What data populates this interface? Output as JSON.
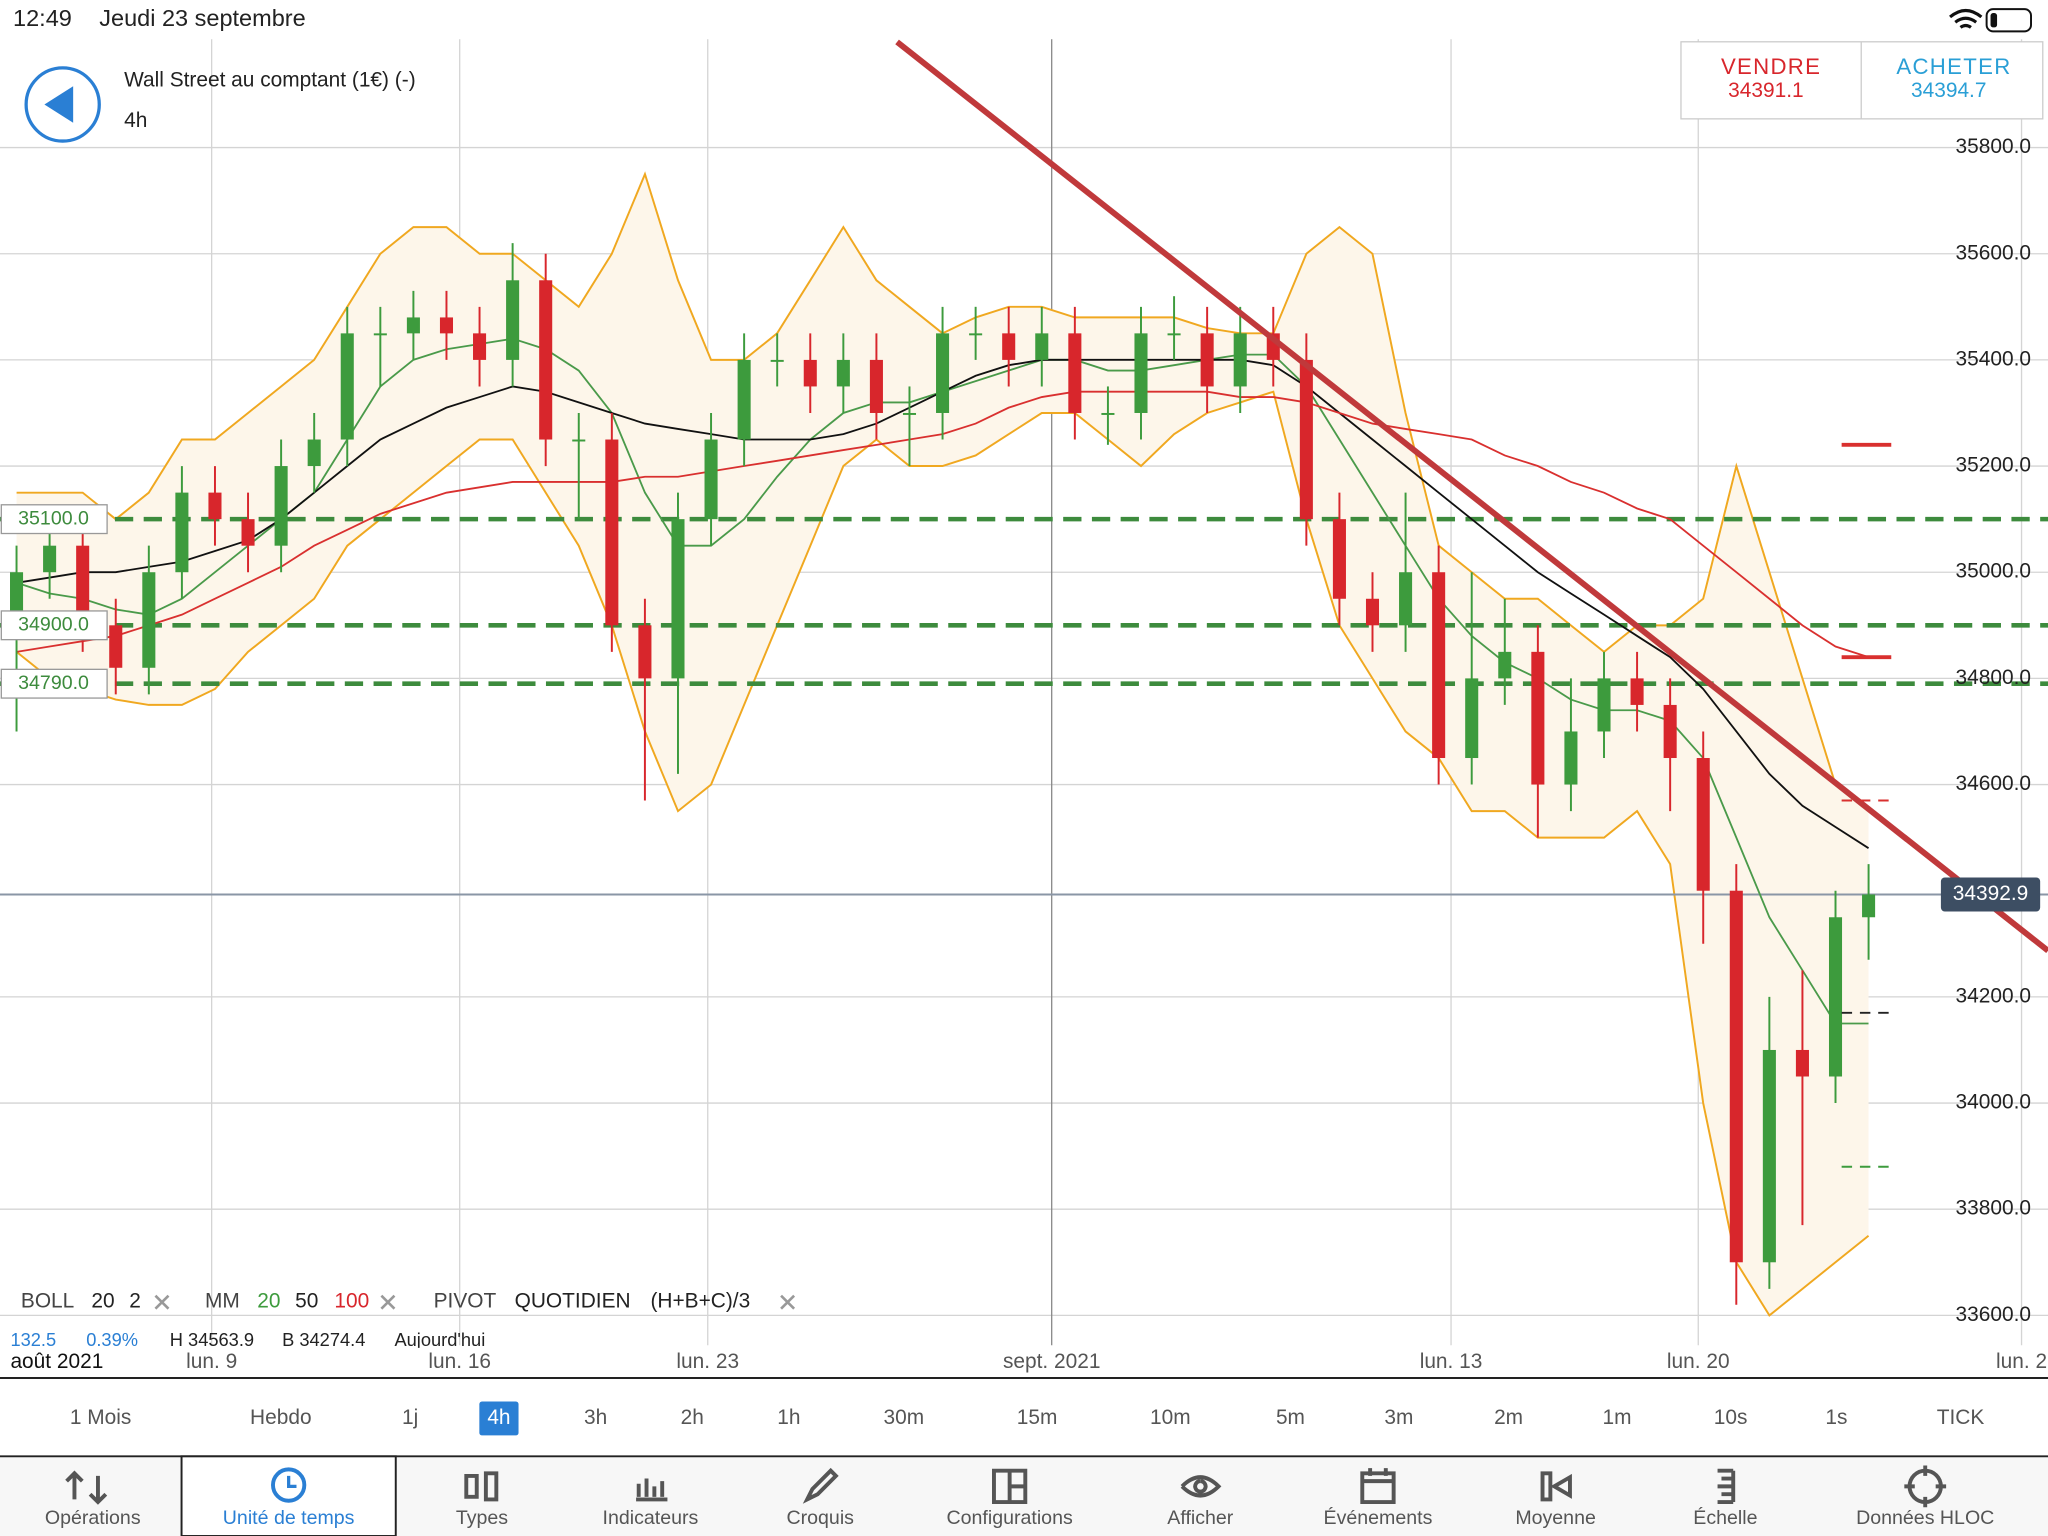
{
  "status_bar": {
    "time": "12:49",
    "date": "Jeudi 23 septembre"
  },
  "header": {
    "instrument": "Wall Street au comptant (1€) (-)",
    "timeframe": "4h"
  },
  "quote": {
    "sell_label": "VENDRE",
    "sell": 34391.1,
    "buy_label": "ACHETER",
    "buy": 34394.7
  },
  "chart_data": {
    "type": "candlestick",
    "x": [
      2,
      6,
      10,
      14,
      18,
      22,
      26,
      30,
      34,
      38,
      42,
      46,
      50,
      54,
      58,
      62,
      66,
      70,
      74,
      78,
      82,
      86,
      90,
      94,
      98,
      102,
      106,
      110,
      114,
      118,
      122,
      126,
      130,
      134,
      138,
      142,
      146,
      150,
      154,
      158,
      162,
      166,
      170,
      174,
      178,
      182,
      186,
      190,
      194,
      198,
      202,
      206,
      210,
      214,
      218,
      222,
      226
    ],
    "open": [
      34900,
      35000,
      35050,
      34900,
      34820,
      35000,
      35150,
      35100,
      35050,
      35200,
      35250,
      35450,
      35450,
      35480,
      35450,
      35400,
      35550,
      35250,
      35250,
      34900,
      34800,
      35100,
      35250,
      35400,
      35400,
      35350,
      35400,
      35300,
      35300,
      35450,
      35450,
      35400,
      35450,
      35300,
      35300,
      35450,
      35450,
      35350,
      35450,
      35400,
      35100,
      34950,
      34900,
      35000,
      34650,
      34800,
      34850,
      34600,
      34700,
      34800,
      34750,
      34650,
      34400,
      33700,
      34100,
      34050,
      34350
    ],
    "high": [
      35050,
      35100,
      35100,
      34950,
      35050,
      35200,
      35200,
      35150,
      35250,
      35300,
      35500,
      35500,
      35530,
      35530,
      35500,
      35620,
      35600,
      35300,
      35300,
      34950,
      35150,
      35300,
      35450,
      35450,
      35450,
      35450,
      35450,
      35350,
      35500,
      35500,
      35500,
      35500,
      35500,
      35350,
      35500,
      35520,
      35500,
      35500,
      35500,
      35450,
      35150,
      35000,
      35150,
      35050,
      35000,
      34950,
      34900,
      34800,
      34850,
      34850,
      34800,
      34700,
      34450,
      34200,
      34250,
      34400,
      34450
    ],
    "low": [
      34700,
      34950,
      34850,
      34770,
      34770,
      34950,
      35050,
      35000,
      35000,
      35150,
      35200,
      35350,
      35400,
      35400,
      35350,
      35350,
      35200,
      35100,
      34850,
      34570,
      34620,
      35050,
      35200,
      35350,
      35300,
      35300,
      35250,
      35200,
      35250,
      35400,
      35350,
      35350,
      35250,
      35240,
      35250,
      35400,
      35300,
      35300,
      35350,
      35050,
      34900,
      34850,
      34850,
      34600,
      34600,
      34750,
      34500,
      34550,
      34650,
      34700,
      34550,
      34300,
      33620,
      33650,
      33770,
      34000,
      34270
    ],
    "close": [
      35000,
      35050,
      34900,
      34820,
      35000,
      35150,
      35100,
      35050,
      35200,
      35250,
      35450,
      35450,
      35480,
      35450,
      35400,
      35550,
      35250,
      35250,
      34900,
      34800,
      35100,
      35250,
      35400,
      35400,
      35350,
      35400,
      35300,
      35300,
      35450,
      35450,
      35400,
      35450,
      35300,
      35300,
      35450,
      35450,
      35350,
      35450,
      35400,
      35100,
      34950,
      34900,
      35000,
      34650,
      34800,
      34850,
      34600,
      34700,
      34800,
      34750,
      34650,
      34400,
      33700,
      34100,
      34050,
      34350,
      34392.9
    ],
    "up_color": "#3d9b3d",
    "down_color": "#d8262c",
    "bollinger": {
      "color": "#f0a820",
      "fill": "#fdf6ea",
      "upper": [
        35150,
        35150,
        35150,
        35100,
        35150,
        35250,
        35250,
        35300,
        35350,
        35400,
        35500,
        35600,
        35650,
        35650,
        35600,
        35600,
        35550,
        35500,
        35600,
        35750,
        35550,
        35400,
        35400,
        35450,
        35550,
        35650,
        35550,
        35500,
        35450,
        35480,
        35500,
        35500,
        35480,
        35480,
        35480,
        35480,
        35460,
        35450,
        35450,
        35600,
        35650,
        35600,
        35300,
        35050,
        35000,
        34950,
        34950,
        34900,
        34850,
        34900,
        34900,
        34950,
        35200,
        35000,
        34800,
        34600,
        34550
      ],
      "lower": [
        34850,
        34800,
        34780,
        34760,
        34750,
        34750,
        34780,
        34850,
        34900,
        34950,
        35050,
        35100,
        35150,
        35200,
        35250,
        35250,
        35150,
        35050,
        34900,
        34700,
        34550,
        34600,
        34750,
        34900,
        35050,
        35200,
        35250,
        35200,
        35200,
        35220,
        35260,
        35300,
        35300,
        35250,
        35200,
        35260,
        35300,
        35320,
        35340,
        35100,
        34900,
        34800,
        34700,
        34650,
        34550,
        34550,
        34500,
        34500,
        34500,
        34550,
        34450,
        34000,
        33700,
        33600,
        33650,
        33700,
        33750
      ]
    },
    "overlays": [
      {
        "color": "#4a9a4a",
        "values": [
          34980,
          34960,
          34950,
          34930,
          34920,
          34950,
          35000,
          35050,
          35100,
          35150,
          35250,
          35350,
          35400,
          35420,
          35430,
          35440,
          35420,
          35380,
          35300,
          35150,
          35050,
          35050,
          35100,
          35180,
          35250,
          35300,
          35320,
          35320,
          35340,
          35360,
          35380,
          35400,
          35400,
          35380,
          35380,
          35390,
          35400,
          35410,
          35410,
          35350,
          35250,
          35150,
          35050,
          34950,
          34880,
          34830,
          34800,
          34760,
          34740,
          34740,
          34720,
          34650,
          34500,
          34350,
          34250,
          34150,
          34150
        ]
      },
      {
        "color": "#111111",
        "values": [
          34980,
          34990,
          35000,
          35000,
          35010,
          35020,
          35040,
          35060,
          35100,
          35150,
          35200,
          35250,
          35280,
          35310,
          35330,
          35350,
          35340,
          35320,
          35300,
          35280,
          35270,
          35260,
          35250,
          35250,
          35250,
          35260,
          35280,
          35310,
          35340,
          35370,
          35390,
          35400,
          35400,
          35400,
          35400,
          35400,
          35400,
          35400,
          35390,
          35350,
          35300,
          35250,
          35200,
          35150,
          35100,
          35050,
          35000,
          34960,
          34920,
          34880,
          34840,
          34780,
          34700,
          34620,
          34560,
          34520,
          34480
        ]
      },
      {
        "color": "#d9302f",
        "values": [
          34850,
          34860,
          34870,
          34880,
          34900,
          34920,
          34950,
          34980,
          35010,
          35050,
          35080,
          35110,
          35130,
          35150,
          35160,
          35170,
          35170,
          35170,
          35170,
          35180,
          35180,
          35190,
          35200,
          35210,
          35220,
          35230,
          35240,
          35250,
          35260,
          35280,
          35310,
          35330,
          35340,
          35340,
          35340,
          35340,
          35340,
          35330,
          35330,
          35320,
          35300,
          35280,
          35270,
          35260,
          35250,
          35220,
          35200,
          35170,
          35150,
          35120,
          35100,
          35050,
          35000,
          34950,
          34900,
          34860,
          34840
        ]
      }
    ],
    "levels": [
      {
        "value": 35100,
        "label": "35100.0"
      },
      {
        "value": 34900,
        "label": "34900.0"
      },
      {
        "value": 34790,
        "label": "34790.0"
      }
    ],
    "level_color": "#3d8b3d",
    "last_price": 34392.9,
    "markers": [
      {
        "value": 35240,
        "color": "#d9302f",
        "dashed": false
      },
      {
        "value": 34840,
        "color": "#d9302f",
        "dashed": false
      },
      {
        "value": 34570,
        "color": "#d9302f",
        "dashed": true
      },
      {
        "value": 34170,
        "color": "#222222",
        "dashed": true
      },
      {
        "value": 33880,
        "color": "#3d9b3d",
        "dashed": true
      }
    ],
    "trendline": {
      "x": [
        108.5,
        247.7
      ],
      "y": [
        35999,
        34287
      ],
      "color": "#c0393b"
    },
    "xlim": [
      0,
      247.7
    ],
    "ylim": [
      33543.6,
      36004.2
    ],
    "xticks": [
      {
        "value": 0,
        "label": "août 2021"
      },
      {
        "value": 25.6,
        "label": "lun. 9"
      },
      {
        "value": 55.6,
        "label": "lun. 16"
      },
      {
        "value": 85.6,
        "label": "lun. 23"
      },
      {
        "value": 127.2,
        "label": "sept. 2021"
      },
      {
        "value": 175.5,
        "label": "lun. 13"
      },
      {
        "value": 205.4,
        "label": "lun. 20"
      },
      {
        "value": 244.5,
        "label": "lun. 2"
      }
    ],
    "yticks": [
      {
        "value": 35800,
        "label": "35800.0"
      },
      {
        "value": 35600,
        "label": "35600.0"
      },
      {
        "value": 35400,
        "label": "35400.0"
      },
      {
        "value": 35200,
        "label": "35200.0"
      },
      {
        "value": 35000,
        "label": "35000.0"
      },
      {
        "value": 34800,
        "label": "34800.0"
      },
      {
        "value": 34600,
        "label": "34600.0"
      },
      {
        "value": 34200,
        "label": "34200.0"
      },
      {
        "value": 34000,
        "label": "34000.0"
      },
      {
        "value": 33800,
        "label": "33800.0"
      },
      {
        "value": 33600,
        "label": "33600.0"
      }
    ],
    "grid": true
  },
  "indicator_legend": {
    "boll": "BOLL",
    "boll_period": 20,
    "boll_dev": 2,
    "mm": "MM",
    "mm_periods": [
      20,
      50,
      100
    ],
    "pivot": "PIVOT",
    "pivot_period": "QUOTIDIEN",
    "pivot_formula": "(H+B+C)/3"
  },
  "info_line": [
    "132.5",
    "0.39%",
    "H 34563.9",
    "B 34274.4",
    "Aujourd'hui"
  ],
  "timeframes": [
    "1 Mois",
    "Hebdo",
    "1j",
    "4h",
    "3h",
    "2h",
    "1h",
    "30m",
    "15m",
    "10m",
    "5m",
    "3m",
    "2m",
    "1m",
    "10s",
    "1s",
    "TICK"
  ],
  "selected_timeframe": 3,
  "toolbar": [
    "Opérations",
    "Unité de temps",
    "Types",
    "Indicateurs",
    "Croquis",
    "Configurations",
    "Afficher",
    "Événements",
    "Moyenne",
    "Échelle",
    "Données HLOC"
  ],
  "selected_tool": 1
}
